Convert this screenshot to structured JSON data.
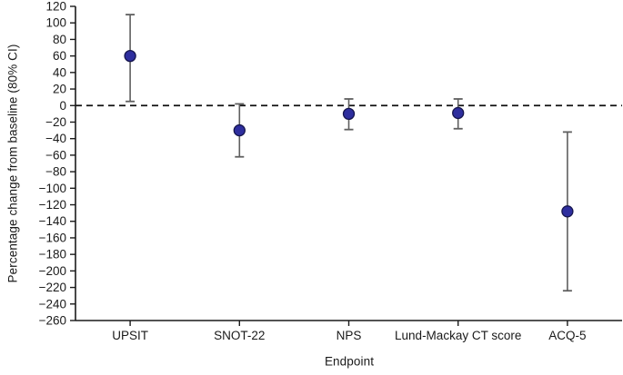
{
  "chart_data": {
    "type": "scatter",
    "subtype": "point-estimate-with-error-bars",
    "title": "",
    "xlabel": "Endpoint",
    "ylabel": "Percentage change from baseline (80% CI)",
    "categories": [
      "UPSIT",
      "SNOT-22",
      "NPS",
      "Lund-Mackay CT score",
      "ACQ-5"
    ],
    "series": [
      {
        "name": "Percentage change from baseline",
        "values": [
          60,
          -30,
          -10,
          -9,
          -128
        ],
        "ci_low": [
          5,
          -62,
          -29,
          -28,
          -224
        ],
        "ci_high": [
          110,
          2,
          8,
          8,
          -32
        ]
      }
    ],
    "ylim": [
      -260,
      120
    ],
    "ytick_step": 20,
    "ytick_labels": [
      "120",
      "100",
      "80",
      "60",
      "40",
      "20",
      "0",
      "−20",
      "−40",
      "−60",
      "−80",
      "−100",
      "−120",
      "−140",
      "−160",
      "−180",
      "−200",
      "−220",
      "−240",
      "−260"
    ],
    "reference_line": 0,
    "grid": false,
    "legend": false,
    "colors": {
      "marker_fill": "#2e2e9e",
      "marker_edge": "#15154d",
      "error_bar": "#5f5f5f",
      "axis": "#1a1a1a",
      "reference_line": "#111111",
      "background": "#ffffff"
    }
  }
}
